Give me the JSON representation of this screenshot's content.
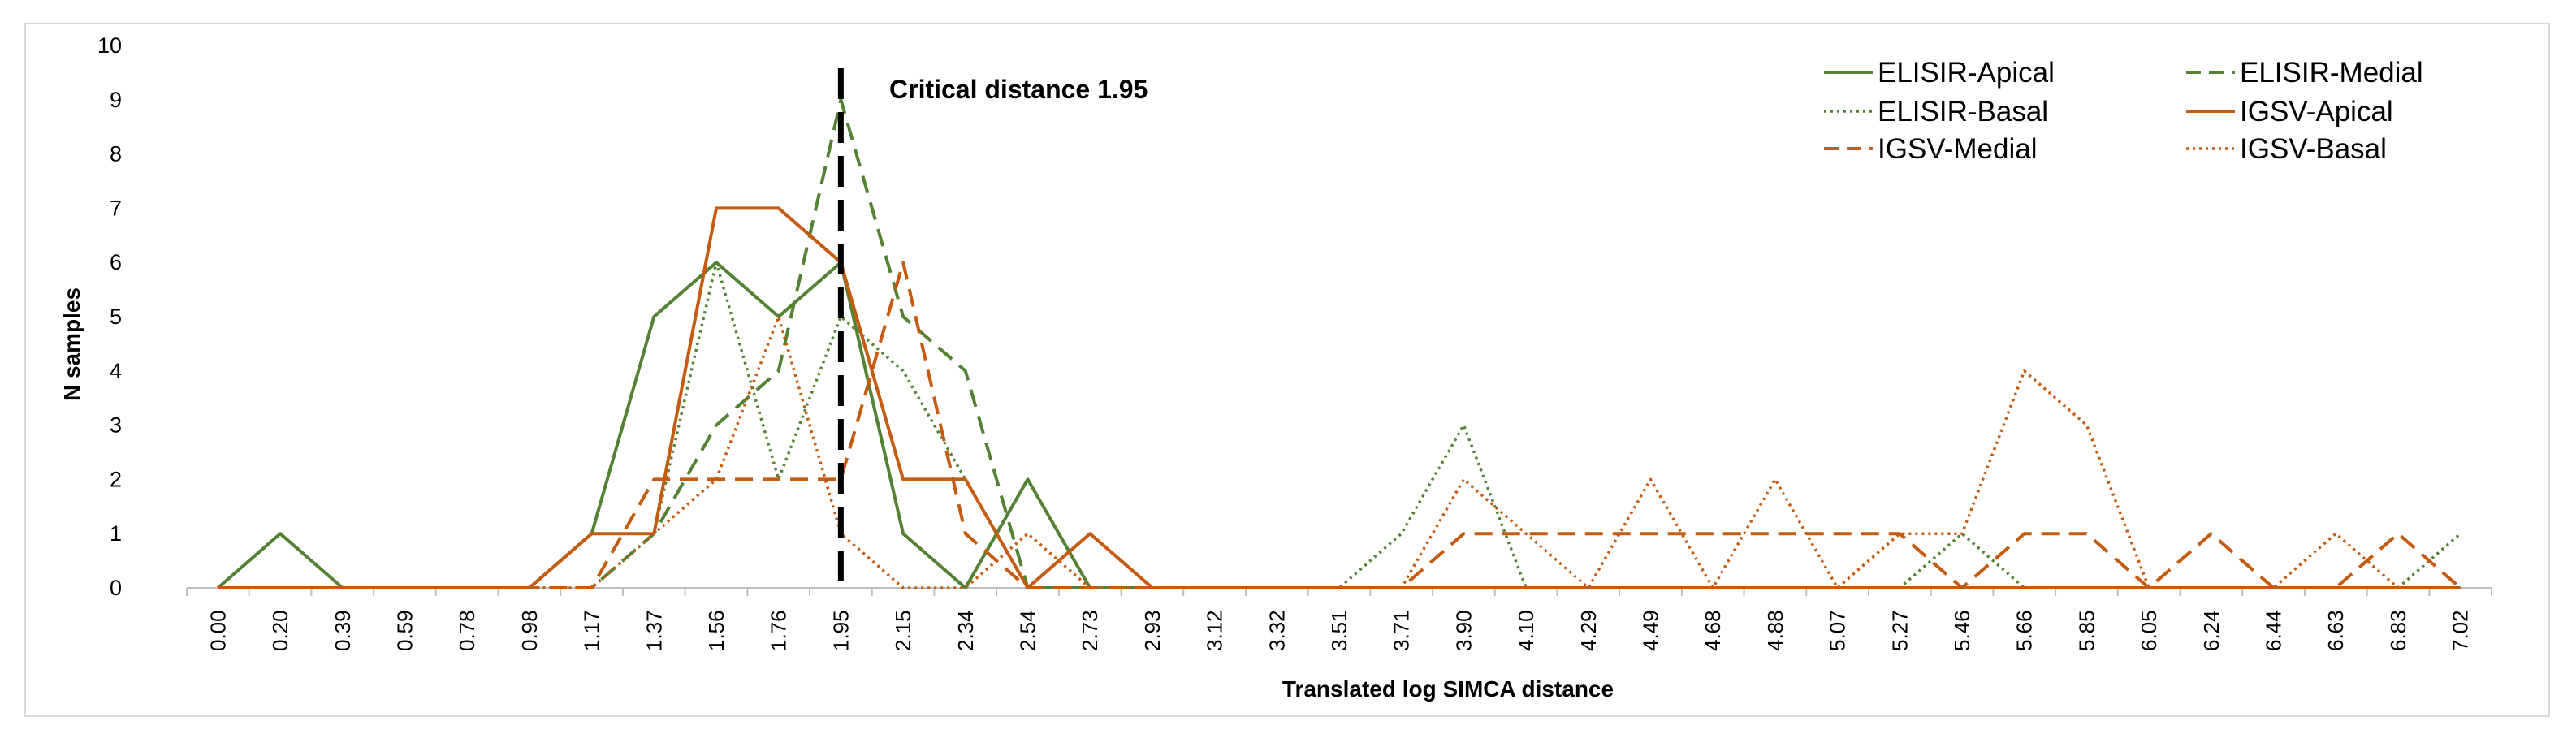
{
  "chart_data": {
    "type": "line",
    "title": "",
    "xlabel": "Translated  log SIMCA distance",
    "ylabel": "N samples",
    "ylim": [
      0,
      10
    ],
    "yticks": [
      0,
      1,
      2,
      3,
      4,
      5,
      6,
      7,
      8,
      9,
      10
    ],
    "categories": [
      "0.00",
      "0.20",
      "0.39",
      "0.59",
      "0.78",
      "0.98",
      "1.17",
      "1.37",
      "1.56",
      "1.76",
      "1.95",
      "2.15",
      "2.34",
      "2.54",
      "2.73",
      "2.93",
      "3.12",
      "3.32",
      "3.51",
      "3.71",
      "3.90",
      "4.10",
      "4.29",
      "4.49",
      "4.68",
      "4.88",
      "5.07",
      "5.27",
      "5.46",
      "5.66",
      "5.85",
      "6.05",
      "6.24",
      "6.44",
      "6.63",
      "6.83",
      "7.02"
    ],
    "grid": false,
    "legend_position": "top-right",
    "critical_line": {
      "label": "Critical distance 1.95",
      "x_value": 1.95,
      "category": "1.95",
      "color": "#000000"
    },
    "series": [
      {
        "name": "ELISIR-Apical",
        "color": "#548235",
        "dash": "solid",
        "values": [
          0,
          1,
          0,
          0,
          0,
          0,
          1,
          5,
          6,
          5,
          6,
          1,
          0,
          2,
          0,
          0,
          0,
          0,
          0,
          0,
          0,
          0,
          0,
          0,
          0,
          0,
          0,
          0,
          0,
          0,
          0,
          0,
          0,
          0,
          0,
          0,
          0
        ]
      },
      {
        "name": "ELISIR-Medial",
        "color": "#548235",
        "dash": "dashed",
        "values": [
          0,
          0,
          0,
          0,
          0,
          0,
          0,
          1,
          3,
          4,
          9,
          5,
          4,
          0,
          0,
          0,
          0,
          0,
          0,
          0,
          0,
          0,
          0,
          0,
          0,
          0,
          0,
          0,
          0,
          0,
          0,
          0,
          0,
          0,
          0,
          0,
          0
        ]
      },
      {
        "name": "ELISIR-Basal",
        "color": "#548235",
        "dash": "dotted",
        "values": [
          0,
          0,
          0,
          0,
          0,
          0,
          0,
          1,
          6,
          2,
          5,
          4,
          2,
          0,
          0,
          0,
          0,
          0,
          0,
          1,
          3,
          0,
          0,
          0,
          0,
          0,
          0,
          0,
          1,
          0,
          0,
          0,
          0,
          0,
          0,
          0,
          1
        ]
      },
      {
        "name": "IGSV-Apical",
        "color": "#C55A11",
        "dash": "solid",
        "values": [
          0,
          0,
          0,
          0,
          0,
          0,
          1,
          1,
          7,
          7,
          6,
          2,
          2,
          0,
          1,
          0,
          0,
          0,
          0,
          0,
          0,
          0,
          0,
          0,
          0,
          0,
          0,
          0,
          0,
          0,
          0,
          0,
          0,
          0,
          0,
          0,
          0
        ]
      },
      {
        "name": "IGSV-Medial",
        "color": "#C55A11",
        "dash": "dashed",
        "values": [
          0,
          0,
          0,
          0,
          0,
          0,
          0,
          2,
          2,
          2,
          2,
          6,
          1,
          0,
          0,
          0,
          0,
          0,
          0,
          0,
          1,
          1,
          1,
          1,
          1,
          1,
          1,
          1,
          0,
          1,
          1,
          0,
          1,
          0,
          0,
          1,
          0
        ]
      },
      {
        "name": "IGSV-Basal",
        "color": "#C55A11",
        "dash": "dotted",
        "values": [
          0,
          0,
          0,
          0,
          0,
          0,
          0,
          1,
          2,
          5,
          1,
          0,
          0,
          1,
          0,
          0,
          0,
          0,
          0,
          0,
          2,
          1,
          0,
          2,
          0,
          2,
          0,
          1,
          1,
          4,
          3,
          0,
          0,
          0,
          1,
          0,
          0
        ]
      }
    ]
  }
}
